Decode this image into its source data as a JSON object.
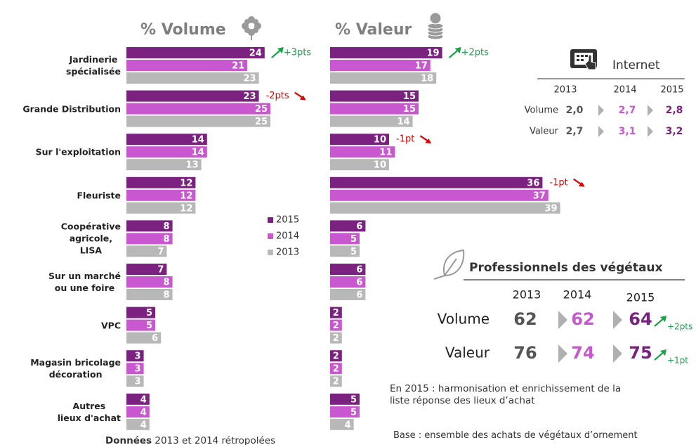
{
  "chart_data": [
    {
      "type": "bar",
      "orientation": "horizontal",
      "title": "% Volume",
      "categories": [
        "Jardinerie\nspécialisée",
        "Grande Distribution",
        "Sur l'exploitation",
        "Fleuriste",
        "Coopérative\nagricole,\nLISA",
        "Sur un marché\nou une foire",
        "VPC",
        "Magasin bricolage\ndécoration",
        "Autres\nlieux d'achat"
      ],
      "series": [
        {
          "name": "2015",
          "color": "#7b2180",
          "values": [
            24,
            23,
            14,
            12,
            8,
            7,
            5,
            3,
            4
          ]
        },
        {
          "name": "2014",
          "color": "#c957cf",
          "values": [
            21,
            25,
            14,
            12,
            8,
            8,
            5,
            3,
            4
          ]
        },
        {
          "name": "2013",
          "color": "#b8b8b8",
          "values": [
            23,
            25,
            13,
            12,
            7,
            8,
            6,
            3,
            4
          ]
        }
      ],
      "annotations": [
        "+3pts",
        "-2pts",
        null,
        null,
        null,
        null,
        null,
        null,
        null
      ]
    },
    {
      "type": "bar",
      "orientation": "horizontal",
      "title": "% Valeur",
      "series": [
        {
          "color": "#7b2180",
          "values": [
            19,
            15,
            10,
            36,
            6,
            6,
            2,
            2,
            5
          ]
        },
        {
          "color": "#c957cf",
          "values": [
            17,
            15,
            11,
            37,
            5,
            6,
            2,
            2,
            5
          ]
        },
        {
          "color": "#b8b8b8",
          "values": [
            18,
            14,
            10,
            39,
            5,
            6,
            2,
            2,
            4
          ]
        }
      ],
      "annotations": [
        "+2pts",
        null,
        "-1pt",
        "-1pt",
        null,
        null,
        null,
        null,
        null
      ]
    }
  ],
  "internet": {
    "title": "Internet",
    "years": [
      "2013",
      "2014",
      "2015"
    ],
    "rows": [
      {
        "label": "Volume",
        "values": [
          "2,0",
          "2,7",
          "2,8"
        ]
      },
      {
        "label": "Valeur",
        "values": [
          "2,7",
          "3,1",
          "3,2"
        ]
      }
    ]
  },
  "professionnels": {
    "title": "Professionnels des végétaux",
    "years": [
      "2013",
      "2014",
      "2015"
    ],
    "rows": [
      {
        "label": "Volume",
        "values": [
          62,
          62,
          64
        ],
        "change": "+2pts"
      },
      {
        "label": "Valeur",
        "values": [
          76,
          74,
          75
        ],
        "change": "+1pt"
      }
    ]
  },
  "notes": [
    "En 2015 : harmonisation et enrichissement de la\nliste réponse des lieux d’achat",
    "Base : ensemble des achats de végétaux d’ornement"
  ],
  "footnote": {
    "bold": "Données",
    "text": "2013 et 2014 rétropolées"
  }
}
